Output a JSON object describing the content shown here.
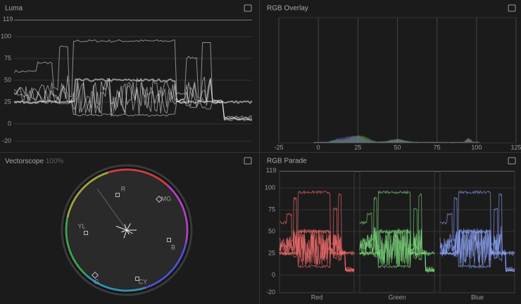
{
  "luma": {
    "title": "Luma",
    "top": 119,
    "ticks": [
      100,
      75,
      50,
      25,
      0,
      -20
    ]
  },
  "rgb_overlay": {
    "title": "RGB Overlay",
    "xticks": [
      -25,
      0,
      25,
      50,
      75,
      100,
      125
    ]
  },
  "vectorscope": {
    "title": "Vectorscope",
    "zoom": "100%",
    "targets": [
      "R",
      "MG",
      "YL",
      "B",
      "G",
      "CY"
    ]
  },
  "rgb_parade": {
    "title": "RGB Parade",
    "top": 119,
    "ticks": [
      100,
      75,
      50,
      25,
      0,
      -20
    ],
    "channels": [
      "Red",
      "Green",
      "Blue"
    ]
  }
}
